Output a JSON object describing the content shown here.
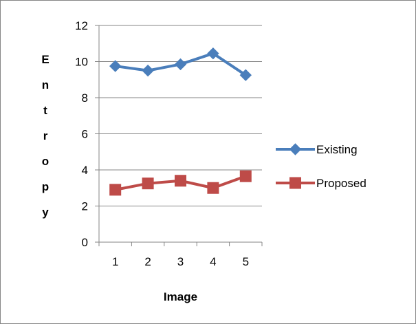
{
  "chart_data": {
    "type": "line",
    "title": "",
    "xlabel": "Image",
    "ylabel": "Entropy",
    "categories": [
      "1",
      "2",
      "3",
      "4",
      "5"
    ],
    "ylim": [
      0,
      12
    ],
    "yticks": [
      0,
      2,
      4,
      6,
      8,
      10,
      12
    ],
    "grid": true,
    "legend_position": "right",
    "series": [
      {
        "name": "Existing",
        "marker": "diamond",
        "color": "#4A7EBB",
        "values": [
          9.75,
          9.5,
          9.85,
          10.45,
          9.25
        ]
      },
      {
        "name": "Proposed",
        "marker": "square",
        "color": "#BE4B48",
        "values": [
          2.9,
          3.25,
          3.4,
          3.0,
          3.65
        ]
      }
    ]
  }
}
